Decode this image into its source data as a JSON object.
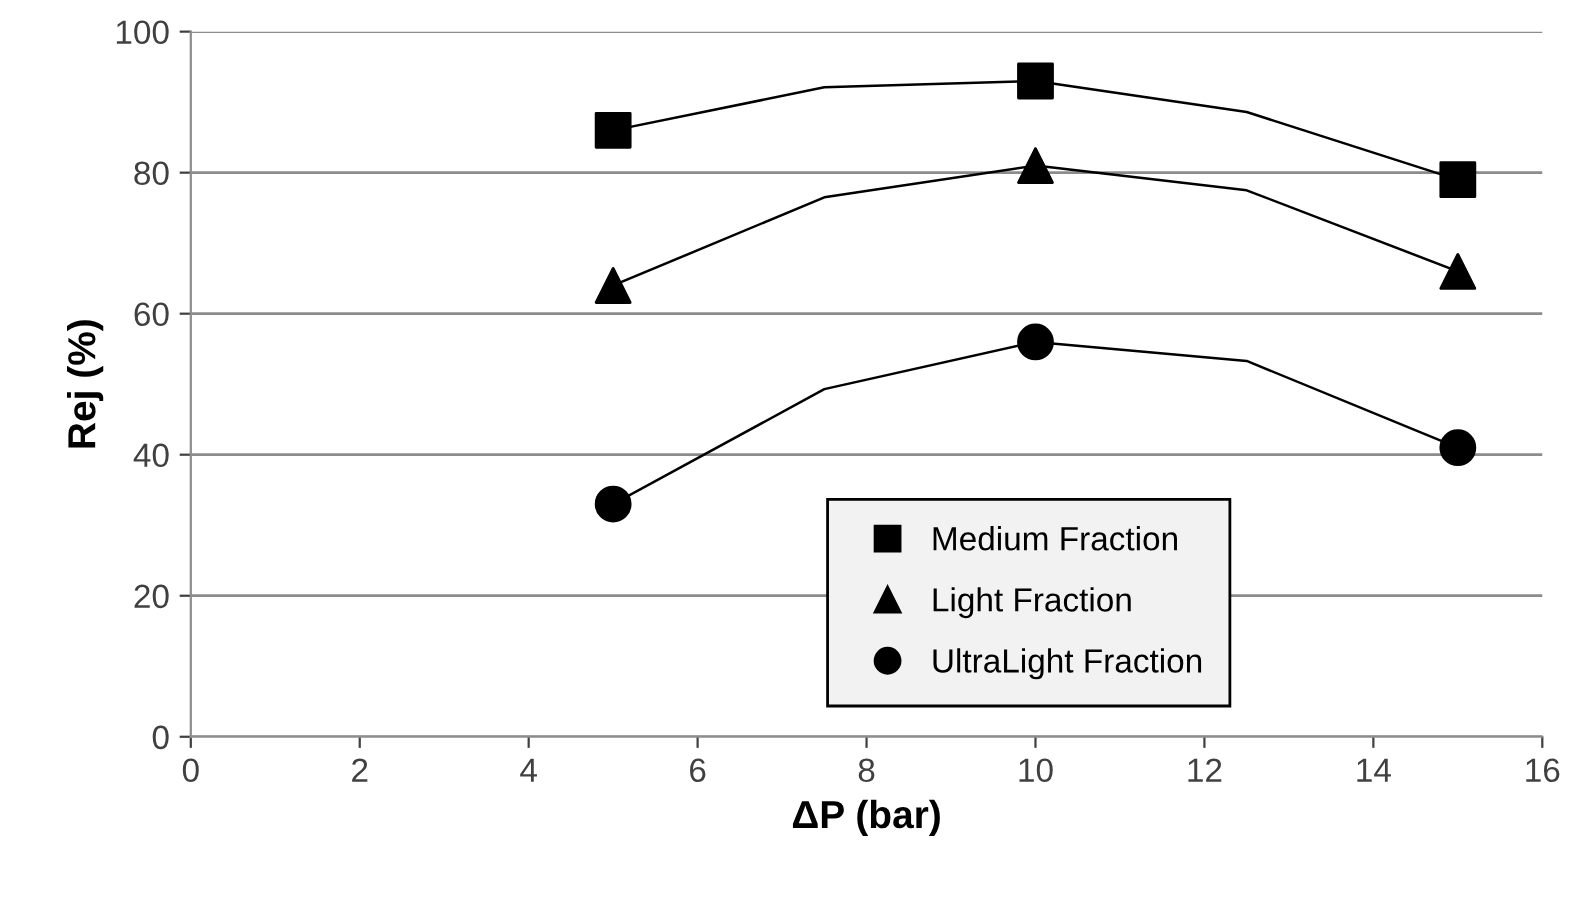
{
  "chart_data": {
    "type": "scatter",
    "xlabel": "ΔP (bar)",
    "ylabel": "Rej (%)",
    "x": [
      5,
      10,
      15
    ],
    "series": [
      {
        "name": "Medium Fraction",
        "color": "#000000",
        "marker": "square",
        "values": [
          86,
          93,
          79
        ]
      },
      {
        "name": "Light Fraction",
        "color": "#000000",
        "marker": "triangle",
        "values": [
          64,
          81,
          66
        ]
      },
      {
        "name": "UltraLight Fraction",
        "color": "#000000",
        "marker": "circle",
        "values": [
          33,
          56,
          41
        ]
      },
      {
        "type": "line",
        "color": "#000000",
        "x": [
          5,
          7.5,
          10,
          12.5,
          15
        ],
        "values": [
          86,
          92.1,
          93,
          88.6,
          79
        ]
      },
      {
        "type": "line",
        "color": "#000000",
        "x": [
          5,
          7.5,
          10,
          12.5,
          15
        ],
        "values": [
          64,
          76.5,
          81,
          77.5,
          66
        ]
      },
      {
        "type": "line",
        "color": "#000000",
        "x": [
          5,
          7.5,
          10,
          12.5,
          15
        ],
        "values": [
          33,
          49.3,
          56,
          53.3,
          41
        ]
      }
    ],
    "xlim": [
      0,
      16
    ],
    "xticks": [
      0,
      2,
      4,
      6,
      8,
      10,
      12,
      14,
      16
    ],
    "ylim": [
      0,
      100
    ],
    "yticks": [
      0,
      20,
      40,
      60,
      80,
      100
    ],
    "grid": "y",
    "legend": "bottom"
  }
}
